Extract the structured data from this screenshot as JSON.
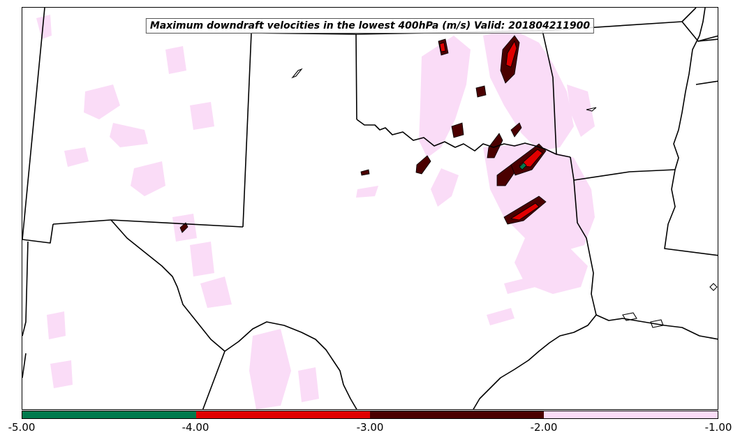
{
  "title": "Maximum downdraft velocities in the lowest 400hPa (m/s) Valid: 201804211900",
  "map": {
    "region": "Texas and southern Great Plains",
    "projection": "Lambert conformal",
    "line_color": "#000000",
    "background": "#ffffff"
  },
  "colorbar": {
    "levels": [
      -5.0,
      -4.0,
      -3.0,
      -2.0,
      -1.0
    ],
    "tick_labels": [
      "-5.00",
      "-4.00",
      "-3.00",
      "-2.00",
      "-1.00"
    ],
    "colors": [
      "#007a4d",
      "#e00000",
      "#4a0000",
      "#fadcf7"
    ]
  },
  "legend_colors": {
    "light": "#fadcf7",
    "dark": "#4a0000",
    "red": "#e00000",
    "green": "#007a4d"
  }
}
